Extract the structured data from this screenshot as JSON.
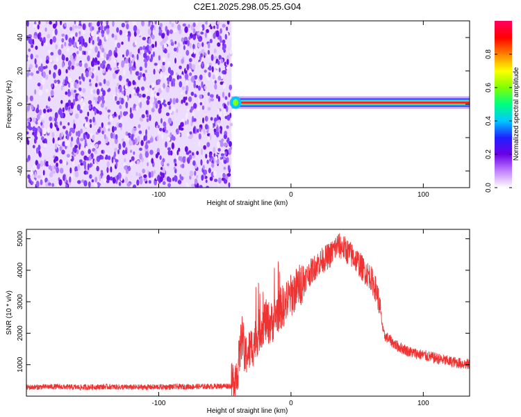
{
  "title": "C2E1.2025.298.05.25.G04",
  "chart_data": [
    {
      "type": "heatmap",
      "xlabel": "Height of straight line (km)",
      "ylabel": "Frequency (Hz)",
      "xlim": [
        -200,
        135
      ],
      "ylim": [
        -50,
        50
      ],
      "x_ticks": [
        -100,
        0,
        100
      ],
      "y_ticks": [
        -40,
        -20,
        0,
        20,
        40
      ],
      "colorbar": {
        "label": "Normalized spectral amplitude",
        "range": [
          0,
          1
        ],
        "ticks": [
          0.0,
          0.2,
          0.4,
          0.6,
          0.8
        ],
        "tick_labels": [
          "0.0",
          "0.2",
          "0.4",
          "0.6",
          "0.8"
        ],
        "colors": [
          "#ffffff",
          "#c080ff",
          "#6b00e6",
          "#2020ff",
          "#00c8ff",
          "#00ff80",
          "#80ff00",
          "#ffff00",
          "#ff8000",
          "#ff0000",
          "#ff0060"
        ]
      },
      "regions": [
        {
          "x_range": [
            -200,
            -45
          ],
          "f_range": [
            -50,
            50
          ],
          "amplitude": 0.15,
          "pattern": "noise"
        },
        {
          "x_range": [
            -45,
            135
          ],
          "f_center": 1,
          "f_halfwidth": 3,
          "amplitude_peak": 0.95,
          "pattern": "narrow carrier line"
        }
      ]
    },
    {
      "type": "line",
      "xlabel": "Height of straight line (km)",
      "ylabel": "SNR (10 * v/v)",
      "xlim": [
        -200,
        135
      ],
      "ylim": [
        0,
        5300
      ],
      "x_ticks": [
        -100,
        0,
        100
      ],
      "y_ticks": [
        1000,
        2000,
        3000,
        4000,
        5000
      ],
      "color": "#ee3333",
      "series": [
        {
          "x": [
            -200,
            -180,
            -160,
            -140,
            -120,
            -100,
            -80,
            -60,
            -45,
            -40,
            -37,
            -35,
            -33,
            -30,
            -25,
            -20,
            -15,
            -10,
            -5,
            0,
            10,
            20,
            30,
            35,
            40,
            45,
            50,
            55,
            60,
            65,
            68,
            70,
            80,
            90,
            100,
            110,
            120,
            135
          ],
          "values": [
            280,
            300,
            280,
            300,
            280,
            290,
            300,
            310,
            330,
            900,
            2000,
            1200,
            1400,
            1500,
            2000,
            2400,
            2300,
            2700,
            2900,
            3200,
            3700,
            4200,
            4500,
            4800,
            4700,
            4500,
            4300,
            4000,
            3800,
            3300,
            2600,
            1950,
            1600,
            1400,
            1300,
            1200,
            1100,
            1000
          ]
        }
      ]
    }
  ]
}
